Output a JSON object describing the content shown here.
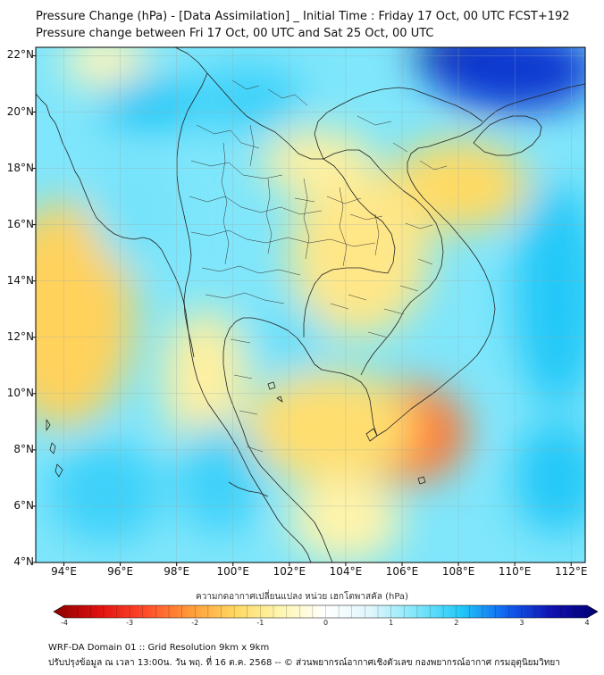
{
  "title": {
    "line1": "Pressure Change (hPa) - [Data Assimilation] _ Initial Time : Friday 17 Oct, 00 UTC FCST+192",
    "line2": "Pressure change between Fri 17 Oct, 00 UTC and Sat 25 Oct, 00 UTC"
  },
  "map": {
    "lat_labels": [
      "22°N",
      "20°N",
      "18°N",
      "16°N",
      "14°N",
      "12°N",
      "10°N",
      "8°N",
      "6°N",
      "4°N"
    ],
    "lon_labels": [
      "94°E",
      "96°E",
      "98°E",
      "100°E",
      "102°E",
      "104°E",
      "106°E",
      "108°E",
      "110°E",
      "112°E"
    ],
    "lat_values": [
      22,
      20,
      18,
      16,
      14,
      12,
      10,
      8,
      6,
      4
    ],
    "lon_values": [
      94,
      96,
      98,
      100,
      102,
      104,
      106,
      108,
      110,
      112
    ],
    "extent": {
      "lon_min": 93.0,
      "lon_max": 112.5,
      "lat_min": 4.0,
      "lat_max": 22.3
    },
    "field_blobs": [
      {
        "lon": 106.1,
        "lat": 8.6,
        "value": -2.3,
        "rx": 2.2,
        "ry": 1.8
      },
      {
        "lon": 103.5,
        "lat": 8.8,
        "value": -1.2,
        "rx": 3.0,
        "ry": 2.0
      },
      {
        "lon": 94.0,
        "lat": 12.8,
        "value": -1.4,
        "rx": 2.5,
        "ry": 4.0
      },
      {
        "lon": 108.0,
        "lat": 17.4,
        "value": -1.3,
        "rx": 2.5,
        "ry": 1.6
      },
      {
        "lon": 104.5,
        "lat": 15.0,
        "value": -1.0,
        "rx": 2.5,
        "ry": 3.0
      },
      {
        "lon": 103.0,
        "lat": 18.2,
        "value": -0.8,
        "rx": 2.0,
        "ry": 1.2
      },
      {
        "lon": 95.5,
        "lat": 21.8,
        "value": -0.6,
        "rx": 1.5,
        "ry": 1.0
      },
      {
        "lon": 99.0,
        "lat": 10.5,
        "value": -0.8,
        "rx": 1.5,
        "ry": 2.5
      },
      {
        "lon": 104.0,
        "lat": 5.5,
        "value": -0.7,
        "rx": 2.0,
        "ry": 1.5
      },
      {
        "lon": 109.0,
        "lat": 22.0,
        "value": 4.0,
        "rx": 2.5,
        "ry": 1.2
      },
      {
        "lon": 110.0,
        "lat": 21.5,
        "value": 3.0,
        "rx": 3.0,
        "ry": 1.5
      },
      {
        "lon": 97.0,
        "lat": 20.3,
        "value": 2.0,
        "rx": 1.8,
        "ry": 1.0
      },
      {
        "lon": 100.5,
        "lat": 20.5,
        "value": 1.8,
        "rx": 2.0,
        "ry": 1.2
      },
      {
        "lon": 95.5,
        "lat": 6.5,
        "value": 1.8,
        "rx": 2.0,
        "ry": 1.8
      },
      {
        "lon": 111.5,
        "lat": 13.5,
        "value": 2.0,
        "rx": 1.5,
        "ry": 4.0
      },
      {
        "lon": 111.5,
        "lat": 7.0,
        "value": 2.0,
        "rx": 1.5,
        "ry": 2.0
      },
      {
        "lon": 99.5,
        "lat": 7.0,
        "value": 1.8,
        "rx": 1.5,
        "ry": 2.0
      },
      {
        "lon": 102.0,
        "lat": 12.0,
        "value": 1.5,
        "rx": 1.2,
        "ry": 1.2
      },
      {
        "lon": 96.5,
        "lat": 16.5,
        "value": 1.4,
        "rx": 1.5,
        "ry": 2.0
      }
    ]
  },
  "colorbar": {
    "title": "ความกดอากาศเปลี่ยนแปลง หน่วย เฮกโตพาสคัล (hPa)",
    "min": -4,
    "max": 4,
    "tick_labels": [
      "-4",
      "-3",
      "-2",
      "-1",
      "0",
      "1",
      "2",
      "3",
      "4"
    ],
    "tick_values": [
      -4,
      -3,
      -2,
      -1,
      0,
      1,
      2,
      3,
      4
    ],
    "colors": [
      "#8b0000",
      "#e01010",
      "#ff4a2a",
      "#ff9a38",
      "#ffd860",
      "#fff6b0",
      "#ffffff",
      "#dff6fc",
      "#7fe6fb",
      "#20c8f8",
      "#1060f0",
      "#1010b0",
      "#000070"
    ]
  },
  "footer": {
    "line1": "WRF-DA Domain 01 :: Grid Resolution 9km x 9km",
    "line2": "ปรับปรุงข้อมูล ณ เวลา 13:00น. วัน พฤ. ที่ 16 ต.ค. 2568 -- © ส่วนพยากรณ์อากาศเชิงตัวเลข กองพยากรณ์อากาศ กรมอุตุนิยมวิทยา"
  }
}
